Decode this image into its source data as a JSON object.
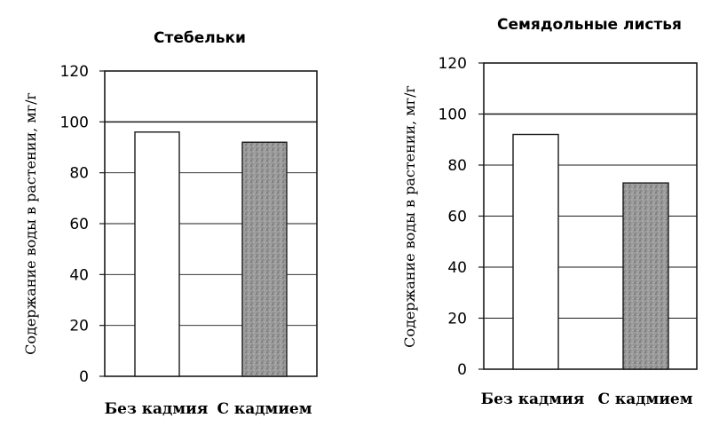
{
  "chart_data": [
    {
      "type": "bar",
      "title": "Стебельки",
      "ylabel": "Содержание воды в растении, мг/г",
      "xlabel": "",
      "categories": [
        "Без кадмия",
        "С кадмием"
      ],
      "values": [
        96,
        92
      ],
      "ylim": [
        0,
        120
      ],
      "yticks": [
        "0",
        "20",
        "40",
        "60",
        "80",
        "100",
        "120"
      ],
      "grid": true,
      "bar_styles": [
        "white",
        "gray-stipple"
      ]
    },
    {
      "type": "bar",
      "title": "Семядольные листья",
      "ylabel": "Содержание воды в растении, мг/г",
      "xlabel": "",
      "categories": [
        "Без кадмия",
        "С кадмием"
      ],
      "values": [
        92,
        73
      ],
      "ylim": [
        0,
        120
      ],
      "yticks": [
        "0",
        "20",
        "40",
        "60",
        "80",
        "100",
        "120"
      ],
      "grid": true,
      "bar_styles": [
        "white",
        "gray-stipple"
      ]
    }
  ],
  "colors": {
    "bar_plain": "#ffffff",
    "bar_stipple": "#8f8f8f",
    "line": "#1a1a1a"
  }
}
